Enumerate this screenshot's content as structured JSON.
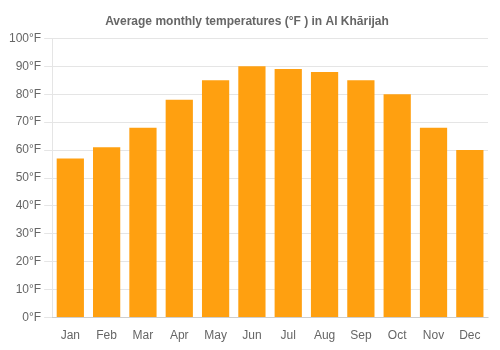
{
  "chart_data": {
    "type": "bar",
    "title": "Average monthly temperatures (°F ) in Al Khārijah",
    "categories": [
      "Jan",
      "Feb",
      "Mar",
      "Apr",
      "May",
      "Jun",
      "Jul",
      "Aug",
      "Sep",
      "Oct",
      "Nov",
      "Dec"
    ],
    "values": [
      57,
      61,
      68,
      78,
      85,
      90,
      89,
      88,
      85,
      80,
      68,
      60
    ],
    "color": "#FFA010",
    "ylim": [
      0,
      100
    ],
    "yticks": [
      {
        "value": 0,
        "label": "0°F"
      },
      {
        "value": 10,
        "label": "10°F"
      },
      {
        "value": 20,
        "label": "20°F"
      },
      {
        "value": 30,
        "label": "30°F"
      },
      {
        "value": 40,
        "label": "40°F"
      },
      {
        "value": 50,
        "label": "50°F"
      },
      {
        "value": 60,
        "label": "60°F"
      },
      {
        "value": 70,
        "label": "70°F"
      },
      {
        "value": 80,
        "label": "80°F"
      },
      {
        "value": 90,
        "label": "90°F"
      },
      {
        "value": 100,
        "label": "100°F"
      }
    ],
    "grid": true
  }
}
